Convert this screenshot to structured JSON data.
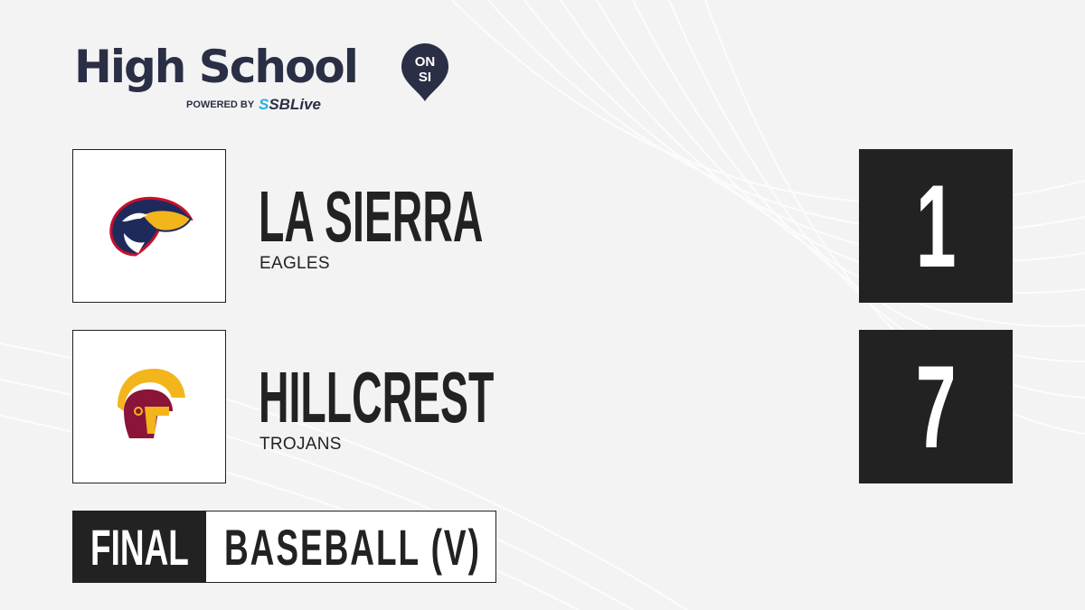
{
  "brand": {
    "title": "High School",
    "badge_top": "ON",
    "badge_bottom": "SI",
    "powered_by": "POWERED BY",
    "partner": "SBLive"
  },
  "teams": [
    {
      "name": "LA SIERRA",
      "mascot": "EAGLES",
      "score": "1",
      "logo_icon": "eagle-logo",
      "colors": [
        "#1f2a5c",
        "#f2b51c",
        "#c8102e"
      ]
    },
    {
      "name": "HILLCREST",
      "mascot": "TROJANS",
      "score": "7",
      "logo_icon": "trojan-helmet-logo",
      "colors": [
        "#8a1538",
        "#f2b51c"
      ]
    }
  ],
  "game": {
    "status": "FINAL",
    "sport": "BASEBALL (V)"
  }
}
